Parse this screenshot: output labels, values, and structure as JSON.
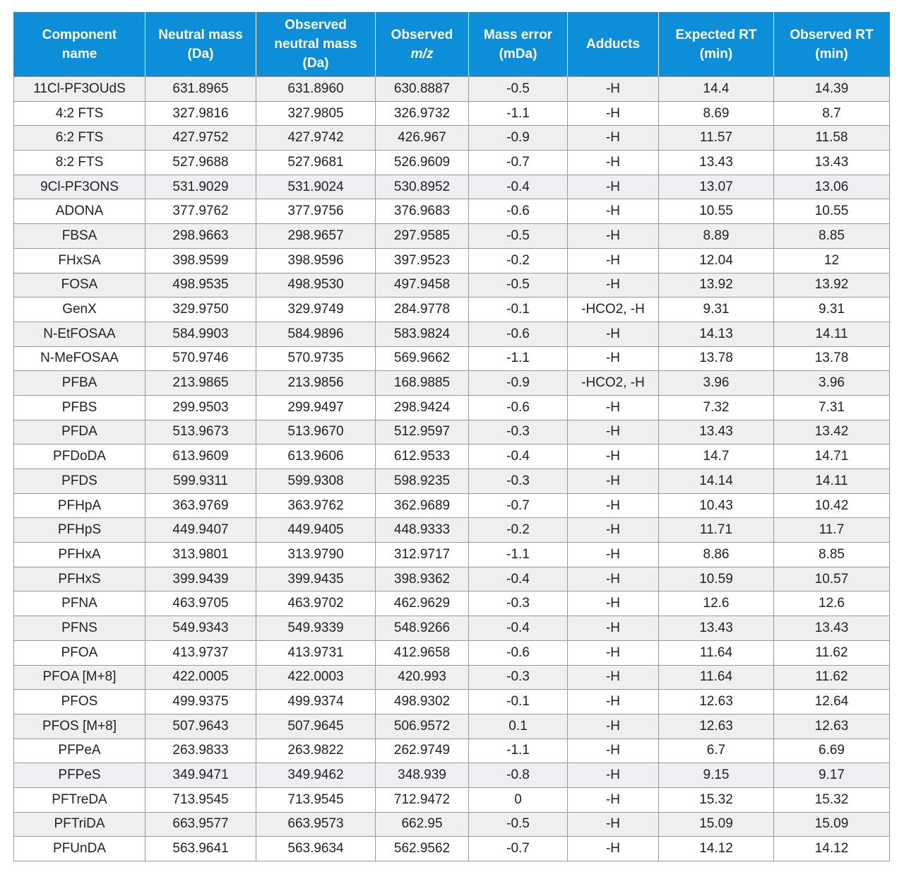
{
  "table": {
    "headers": [
      {
        "line1": "Component",
        "line2": "name",
        "line3": ""
      },
      {
        "line1": "Neutral mass",
        "line2": "(Da)",
        "line3": ""
      },
      {
        "line1": "Observed",
        "line2": "neutral mass",
        "line3": "(Da)"
      },
      {
        "line1": "Observed",
        "line2": "m/z",
        "line3": ""
      },
      {
        "line1": "Mass error",
        "line2": "(mDa)",
        "line3": ""
      },
      {
        "line1": "Adducts",
        "line2": "",
        "line3": ""
      },
      {
        "line1": "Expected RT",
        "line2": "(min)",
        "line3": ""
      },
      {
        "line1": "Observed RT",
        "line2": "(min)",
        "line3": ""
      }
    ],
    "rows": [
      [
        "11Cl-PF3OUdS",
        "631.8965",
        "631.8960",
        "630.8887",
        "-0.5",
        "-H",
        "14.4",
        "14.39"
      ],
      [
        "4:2 FTS",
        "327.9816",
        "327.9805",
        "326.9732",
        "-1.1",
        "-H",
        "8.69",
        "8.7"
      ],
      [
        "6:2 FTS",
        "427.9752",
        "427.9742",
        "426.967",
        "-0.9",
        "-H",
        "11.57",
        "11.58"
      ],
      [
        "8:2 FTS",
        "527.9688",
        "527.9681",
        "526.9609",
        "-0.7",
        "-H",
        "13.43",
        "13.43"
      ],
      [
        "9Cl-PF3ONS",
        "531.9029",
        "531.9024",
        "530.8952",
        "-0.4",
        "-H",
        "13.07",
        "13.06"
      ],
      [
        "ADONA",
        "377.9762",
        "377.9756",
        "376.9683",
        "-0.6",
        "-H",
        "10.55",
        "10.55"
      ],
      [
        "FBSA",
        "298.9663",
        "298.9657",
        "297.9585",
        "-0.5",
        "-H",
        "8.89",
        "8.85"
      ],
      [
        "FHxSA",
        "398.9599",
        "398.9596",
        "397.9523",
        "-0.2",
        "-H",
        "12.04",
        "12"
      ],
      [
        "FOSA",
        "498.9535",
        "498.9530",
        "497.9458",
        "-0.5",
        "-H",
        "13.92",
        "13.92"
      ],
      [
        "GenX",
        "329.9750",
        "329.9749",
        "284.9778",
        "-0.1",
        "-HCO2, -H",
        "9.31",
        "9.31"
      ],
      [
        "N-EtFOSAA",
        "584.9903",
        "584.9896",
        "583.9824",
        "-0.6",
        "-H",
        "14.13",
        "14.11"
      ],
      [
        "N-MeFOSAA",
        "570.9746",
        "570.9735",
        "569.9662",
        "-1.1",
        "-H",
        "13.78",
        "13.78"
      ],
      [
        "PFBA",
        "213.9865",
        "213.9856",
        "168.9885",
        "-0.9",
        "-HCO2, -H",
        "3.96",
        "3.96"
      ],
      [
        "PFBS",
        "299.9503",
        "299.9497",
        "298.9424",
        "-0.6",
        "-H",
        "7.32",
        "7.31"
      ],
      [
        "PFDA",
        "513.9673",
        "513.9670",
        "512.9597",
        "-0.3",
        "-H",
        "13.43",
        "13.42"
      ],
      [
        "PFDoDA",
        "613.9609",
        "613.9606",
        "612.9533",
        "-0.4",
        "-H",
        "14.7",
        "14.71"
      ],
      [
        "PFDS",
        "599.9311",
        "599.9308",
        "598.9235",
        "-0.3",
        "-H",
        "14.14",
        "14.11"
      ],
      [
        "PFHpA",
        "363.9769",
        "363.9762",
        "362.9689",
        "-0.7",
        "-H",
        "10.43",
        "10.42"
      ],
      [
        "PFHpS",
        "449.9407",
        "449.9405",
        "448.9333",
        "-0.2",
        "-H",
        "11.71",
        "11.7"
      ],
      [
        "PFHxA",
        "313.9801",
        "313.9790",
        "312.9717",
        "-1.1",
        "-H",
        "8.86",
        "8.85"
      ],
      [
        "PFHxS",
        "399.9439",
        "399.9435",
        "398.9362",
        "-0.4",
        "-H",
        "10.59",
        "10.57"
      ],
      [
        "PFNA",
        "463.9705",
        "463.9702",
        "462.9629",
        "-0.3",
        "-H",
        "12.6",
        "12.6"
      ],
      [
        "PFNS",
        "549.9343",
        "549.9339",
        "548.9266",
        "-0.4",
        "-H",
        "13.43",
        "13.43"
      ],
      [
        "PFOA",
        "413.9737",
        "413.9731",
        "412.9658",
        "-0.6",
        "-H",
        "11.64",
        "11.62"
      ],
      [
        "PFOA [M+8]",
        "422.0005",
        "422.0003",
        "420.993",
        "-0.3",
        "-H",
        "11.64",
        "11.62"
      ],
      [
        "PFOS",
        "499.9375",
        "499.9374",
        "498.9302",
        "-0.1",
        "-H",
        "12.63",
        "12.64"
      ],
      [
        "PFOS [M+8]",
        "507.9643",
        "507.9645",
        "506.9572",
        "0.1",
        "-H",
        "12.63",
        "12.63"
      ],
      [
        "PFPeA",
        "263.9833",
        "263.9822",
        "262.9749",
        "-1.1",
        "-H",
        "6.7",
        "6.69"
      ],
      [
        "PFPeS",
        "349.9471",
        "349.9462",
        "348.939",
        "-0.8",
        "-H",
        "9.15",
        "9.17"
      ],
      [
        "PFTreDA",
        "713.9545",
        "713.9545",
        "712.9472",
        "0",
        "-H",
        "15.32",
        "15.32"
      ],
      [
        "PFTriDA",
        "663.9577",
        "663.9573",
        "662.95",
        "-0.5",
        "-H",
        "15.09",
        "15.09"
      ],
      [
        "PFUnDA",
        "563.9641",
        "563.9634",
        "562.9562",
        "-0.7",
        "-H",
        "14.12",
        "14.12"
      ]
    ]
  },
  "colors": {
    "header_bg": "#0c8fd8",
    "header_text": "#ffffff",
    "row_stripe": "#efeff1",
    "grid_line": "#9a9a9a"
  }
}
